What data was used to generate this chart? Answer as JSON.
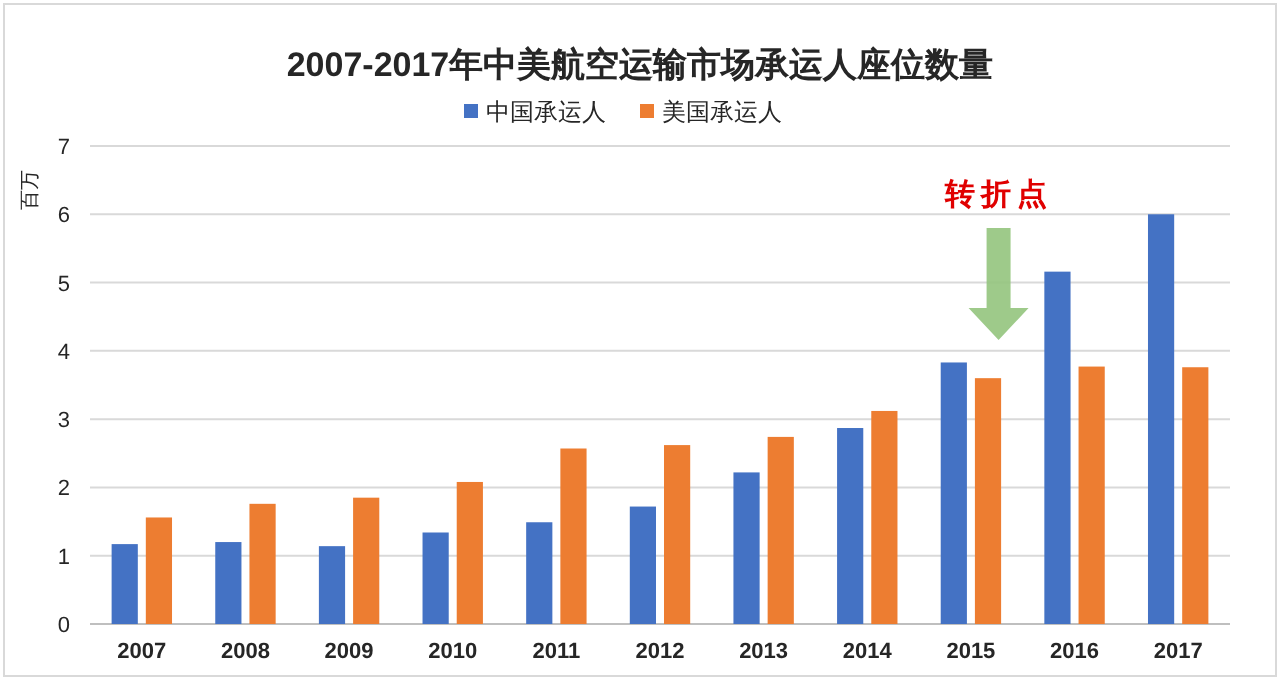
{
  "chart_data": {
    "type": "bar",
    "title": "2007-2017年中美航空运输市场承运人座位数量",
    "ylabel": "百万",
    "categories": [
      "2007",
      "2008",
      "2009",
      "2010",
      "2011",
      "2012",
      "2013",
      "2014",
      "2015",
      "2016",
      "2017"
    ],
    "series": [
      {
        "name": "中国承运人",
        "color": "#4472c4",
        "values": [
          1.17,
          1.2,
          1.14,
          1.34,
          1.49,
          1.72,
          2.22,
          2.87,
          3.83,
          5.16,
          6.0
        ]
      },
      {
        "name": "美国承运人",
        "color": "#ed7d31",
        "values": [
          1.56,
          1.76,
          1.85,
          2.08,
          2.57,
          2.62,
          2.74,
          3.12,
          3.6,
          3.77,
          3.76
        ]
      }
    ],
    "ylim": [
      0,
      7
    ],
    "yticks": [
      0,
      1,
      2,
      3,
      4,
      5,
      6,
      7
    ],
    "grid": "y",
    "legend": "top",
    "annotations": [
      "转折点"
    ]
  }
}
